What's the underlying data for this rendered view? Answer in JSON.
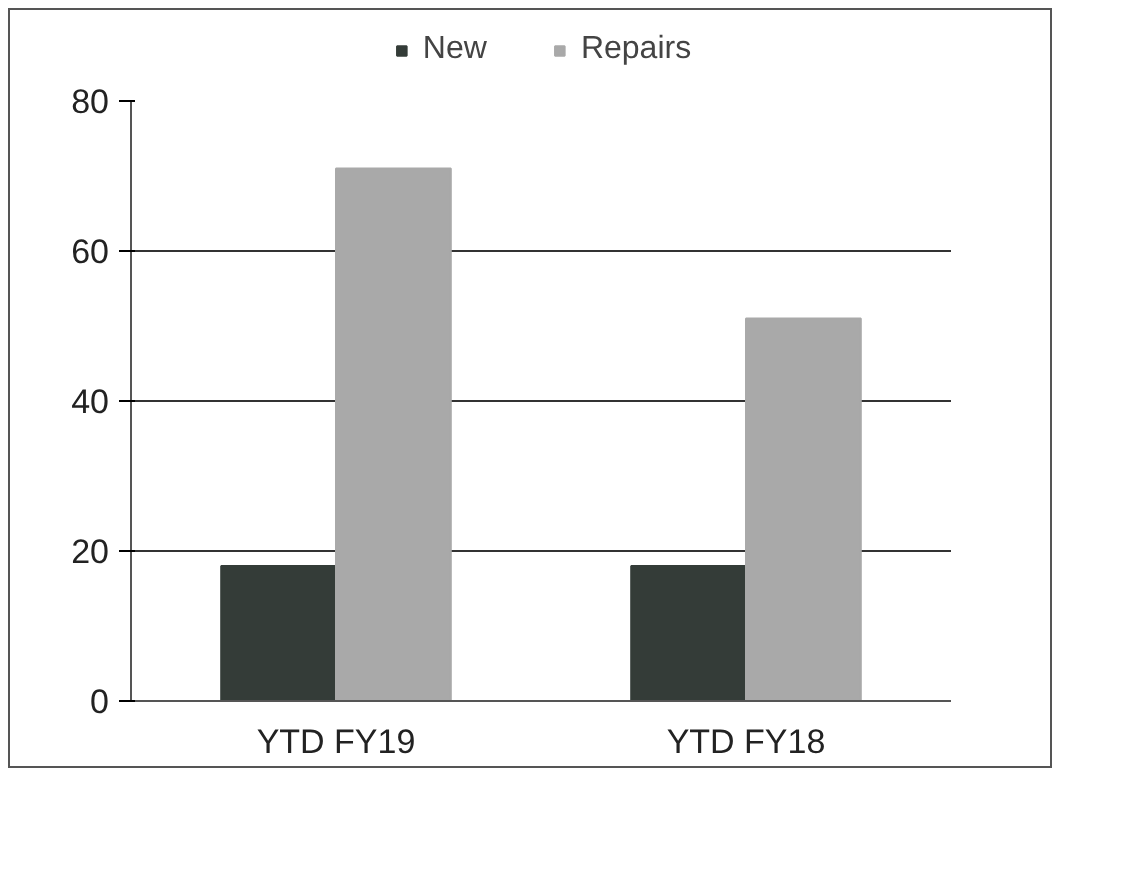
{
  "chart_data": {
    "type": "bar",
    "categories": [
      "YTD FY19",
      "YTD FY18"
    ],
    "series": [
      {
        "name": "New",
        "color": "#343c38",
        "values": [
          18,
          18
        ]
      },
      {
        "name": "Repairs",
        "color": "#a9a9a9",
        "values": [
          71,
          51
        ]
      }
    ],
    "ylim": [
      0,
      80
    ],
    "yticks": [
      0,
      20,
      40,
      60,
      80
    ],
    "grid": "y",
    "legend": "top"
  }
}
